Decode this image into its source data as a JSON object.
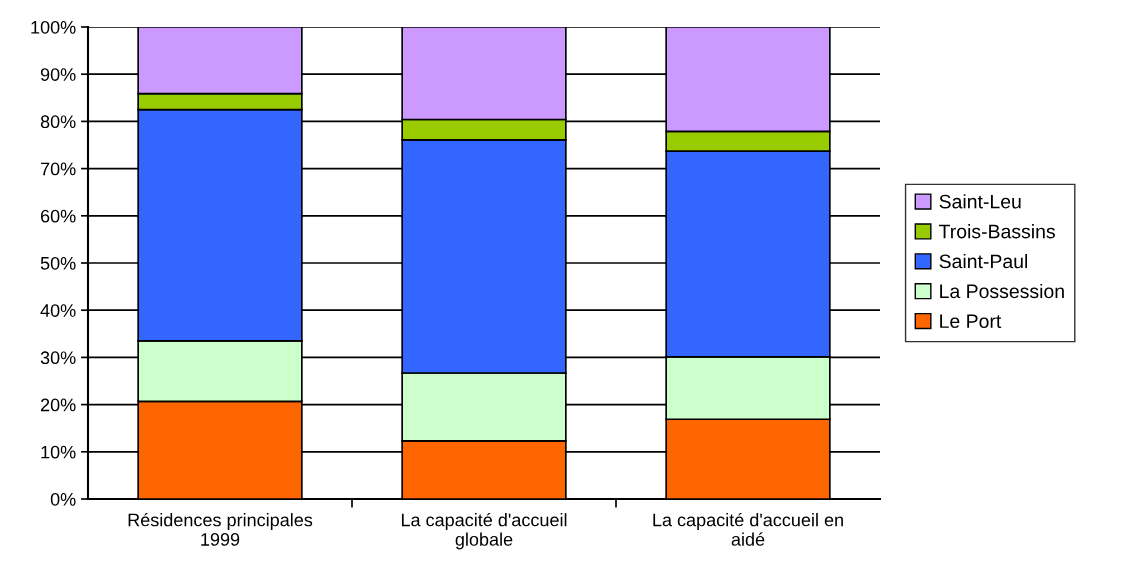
{
  "chart_data": {
    "type": "bar",
    "stacked": true,
    "categories": [
      "Résidences principales\n1999",
      "La capacité d'accueil\nglobale",
      "La capacité d'accueil en\naidé"
    ],
    "series": [
      {
        "name": "Le Port",
        "color": "#ff6600",
        "values": [
          20.7,
          12.3,
          16.9
        ]
      },
      {
        "name": "La Possession",
        "color": "#ccffcc",
        "values": [
          12.8,
          14.4,
          13.2
        ]
      },
      {
        "name": "Saint-Paul",
        "color": "#3366ff",
        "values": [
          49.0,
          49.4,
          43.6
        ]
      },
      {
        "name": "Trois-Bassins",
        "color": "#99cc00",
        "values": [
          3.4,
          4.3,
          4.2
        ]
      },
      {
        "name": "Saint-Leu",
        "color": "#cc99ff",
        "values": [
          14.1,
          19.6,
          22.1
        ]
      }
    ],
    "ylim": [
      0,
      100
    ],
    "yticks": [
      {
        "value": 0,
        "label": "0%"
      },
      {
        "value": 10,
        "label": "10%"
      },
      {
        "value": 20,
        "label": "20%"
      },
      {
        "value": 30,
        "label": "30%"
      },
      {
        "value": 40,
        "label": "40%"
      },
      {
        "value": 50,
        "label": "50%"
      },
      {
        "value": 60,
        "label": "60%"
      },
      {
        "value": 70,
        "label": "70%"
      },
      {
        "value": 80,
        "label": "80%"
      },
      {
        "value": 90,
        "label": "90%"
      },
      {
        "value": 100,
        "label": "100%"
      }
    ],
    "grid": "y",
    "legend": "right"
  }
}
